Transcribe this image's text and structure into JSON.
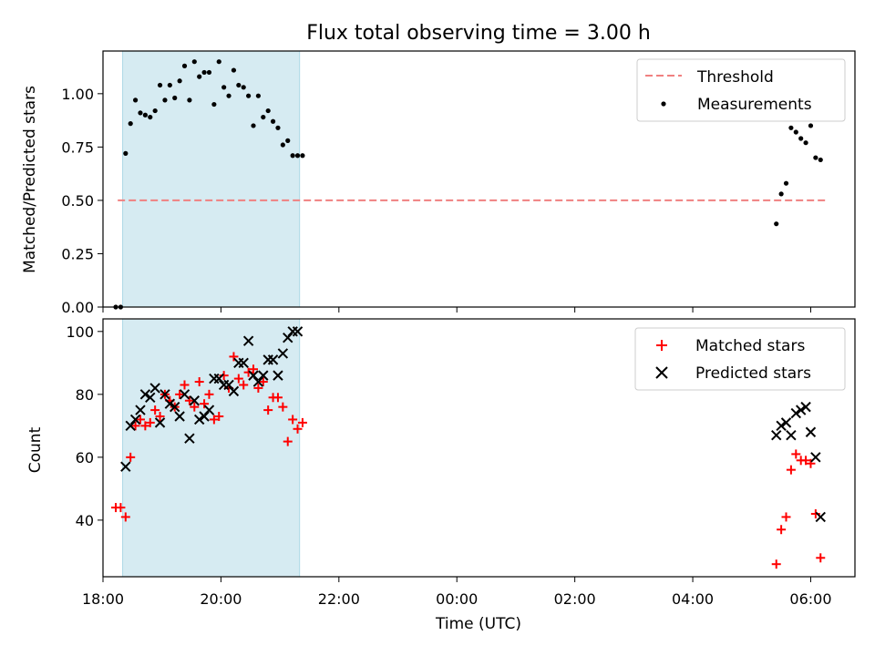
{
  "chart_data": [
    {
      "type": "scatter",
      "title": "Flux total observing time = 3.00 h",
      "xlabel": "",
      "ylabel": "Matched/Predicted stars",
      "x_unit": "UTC time (day1 18:00 .. day2 06:45)",
      "xlim": [
        "18:00",
        "06:45"
      ],
      "ylim": [
        0.0,
        1.2
      ],
      "y_ticks": [
        "0.00",
        "0.25",
        "0.50",
        "0.75",
        "1.00"
      ],
      "shaded_span": [
        "18:20",
        "21:20"
      ],
      "legend": {
        "placement": "upper right",
        "entries": [
          "Threshold",
          "Measurements"
        ]
      },
      "series": [
        {
          "name": "Threshold",
          "style": "dashed-line",
          "color": "#f08080",
          "x": [
            "18:15",
            "06:15"
          ],
          "y": [
            0.5,
            0.5
          ]
        },
        {
          "name": "Measurements",
          "style": "dot",
          "color": "#000000",
          "x": [
            "18:13",
            "18:18",
            "18:23",
            "18:28",
            "18:33",
            "18:38",
            "18:43",
            "18:48",
            "18:53",
            "18:58",
            "19:03",
            "19:08",
            "19:13",
            "19:18",
            "19:23",
            "19:28",
            "19:33",
            "19:38",
            "19:43",
            "19:48",
            "19:53",
            "19:58",
            "20:03",
            "20:08",
            "20:13",
            "20:18",
            "20:23",
            "20:28",
            "20:33",
            "20:38",
            "20:43",
            "20:48",
            "20:53",
            "20:58",
            "21:03",
            "21:08",
            "21:13",
            "21:18",
            "21:23",
            "05:25",
            "05:30",
            "05:35",
            "05:40",
            "05:45",
            "05:50",
            "05:55",
            "06:00",
            "06:05",
            "06:10"
          ],
          "y": [
            0.0,
            0.0,
            0.72,
            0.86,
            0.97,
            0.91,
            0.9,
            0.89,
            0.92,
            1.04,
            0.97,
            1.04,
            0.98,
            1.06,
            1.13,
            0.97,
            1.15,
            1.08,
            1.1,
            1.1,
            0.95,
            1.15,
            1.03,
            0.99,
            1.11,
            1.04,
            1.03,
            0.99,
            0.85,
            0.99,
            0.89,
            0.92,
            0.87,
            0.84,
            0.76,
            0.78,
            0.71,
            0.71,
            0.71,
            0.39,
            0.53,
            0.58,
            0.84,
            0.82,
            0.79,
            0.77,
            0.85,
            0.7,
            0.69
          ]
        }
      ]
    },
    {
      "type": "scatter",
      "title": "",
      "xlabel": "Time (UTC)",
      "ylabel": "Count",
      "xlim": [
        "18:00",
        "06:45"
      ],
      "ylim": [
        22,
        104
      ],
      "y_ticks": [
        "40",
        "60",
        "80",
        "100"
      ],
      "x_ticks": [
        "18:00",
        "20:00",
        "22:00",
        "00:00",
        "02:00",
        "04:00",
        "06:00"
      ],
      "shaded_span": [
        "18:20",
        "21:20"
      ],
      "legend": {
        "placement": "upper right",
        "entries": [
          "Matched stars",
          "Predicted stars"
        ]
      },
      "series": [
        {
          "name": "Matched stars",
          "marker": "plus",
          "color": "#ff0000",
          "x": [
            "18:13",
            "18:18",
            "18:23",
            "18:28",
            "18:33",
            "18:38",
            "18:43",
            "18:48",
            "18:53",
            "18:58",
            "19:03",
            "19:08",
            "19:13",
            "19:18",
            "19:23",
            "19:28",
            "19:33",
            "19:38",
            "19:43",
            "19:48",
            "19:53",
            "19:58",
            "20:03",
            "20:08",
            "20:13",
            "20:18",
            "20:23",
            "20:28",
            "20:33",
            "20:38",
            "20:43",
            "20:48",
            "20:53",
            "20:58",
            "21:03",
            "21:08",
            "21:13",
            "21:18",
            "21:23",
            "05:25",
            "05:30",
            "05:35",
            "05:40",
            "05:45",
            "05:50",
            "05:55",
            "06:00",
            "06:05",
            "06:10"
          ],
          "y": [
            44,
            44,
            41,
            60,
            70,
            72,
            70,
            71,
            75,
            73,
            80,
            78,
            76,
            80,
            83,
            78,
            76,
            84,
            77,
            80,
            72,
            73,
            86,
            82,
            92,
            85,
            83,
            87,
            88,
            82,
            84,
            75,
            79,
            79,
            76,
            65,
            72,
            69,
            71,
            26,
            37,
            41,
            56,
            61,
            59,
            59,
            58,
            42,
            28
          ]
        },
        {
          "name": "Predicted stars",
          "marker": "x",
          "color": "#000000",
          "x": [
            "18:23",
            "18:28",
            "18:33",
            "18:38",
            "18:43",
            "18:48",
            "18:53",
            "18:58",
            "19:03",
            "19:08",
            "19:13",
            "19:18",
            "19:23",
            "19:28",
            "19:33",
            "19:38",
            "19:43",
            "19:48",
            "19:53",
            "19:58",
            "20:03",
            "20:08",
            "20:13",
            "20:18",
            "20:23",
            "20:28",
            "20:33",
            "20:38",
            "20:43",
            "20:48",
            "20:53",
            "20:58",
            "21:03",
            "21:08",
            "21:13",
            "21:18",
            "05:25",
            "05:30",
            "05:35",
            "05:40",
            "05:45",
            "05:50",
            "05:55",
            "06:00",
            "06:05",
            "06:10"
          ],
          "y": [
            57,
            70,
            72,
            75,
            80,
            79,
            82,
            71,
            80,
            77,
            76,
            73,
            80,
            66,
            78,
            72,
            73,
            75,
            85,
            85,
            83,
            83,
            81,
            90,
            90,
            97,
            86,
            84,
            86,
            91,
            91,
            86,
            93,
            98,
            100,
            100,
            67,
            70,
            71,
            67,
            74,
            75,
            76,
            68,
            60,
            41
          ]
        }
      ]
    }
  ]
}
